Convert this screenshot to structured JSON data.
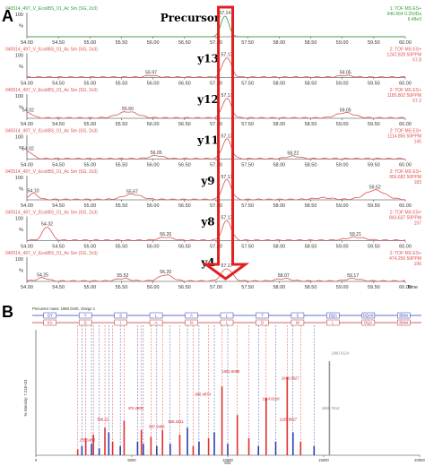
{
  "panel_labels": {
    "a": "A",
    "b": "B"
  },
  "chart_data": [
    {
      "type": "line",
      "panel": "A",
      "xlim": [
        54.0,
        60.0
      ],
      "x_ticks": [
        "54.00",
        "54.50",
        "55.00",
        "55.50",
        "56.00",
        "56.50",
        "57.00",
        "57.50",
        "58.00",
        "58.50",
        "59.00",
        "59.50",
        "60.00"
      ],
      "x_axis_label": "Time",
      "series": [
        {
          "name": "Precursor",
          "header": "040514_497_V_EcoliBS_01_Ac Sm (SG, 2x3)",
          "color": "#3a9a3a",
          "right_info": [
            "1: TOF MS ES+",
            "946.664 0.250Da",
            "6.48e3"
          ],
          "peaks": [
            {
              "x": 57.14,
              "h": 1.0,
              "w": 0.09
            }
          ],
          "peak_labels": [
            {
              "x": 57.14,
              "text": "57.14"
            }
          ]
        },
        {
          "name": "y13",
          "header": "040514_497_V_EcoliBS_01_Ac Sm (SG, 2x3)",
          "color": "#e05050",
          "right_info": [
            "2: TOF MS ES+",
            "1242.828 50PPM",
            "57.8"
          ],
          "peaks": [
            {
              "x": 57.17,
              "h": 0.95,
              "w": 0.1
            },
            {
              "x": 55.97,
              "h": 0.08,
              "w": 0.12
            },
            {
              "x": 59.05,
              "h": 0.08,
              "w": 0.15
            }
          ],
          "peak_labels": [
            {
              "x": 57.17,
              "text": "57.17"
            },
            {
              "x": 55.97,
              "text": "55.97"
            },
            {
              "x": 59.05,
              "text": "59.05"
            }
          ]
        },
        {
          "name": "y12",
          "header": "040514_497_V_EcoliBS_01_Ac Sm (SG, 2x3)",
          "color": "#e05050",
          "right_info": [
            "2: TOF MS ES+",
            "1185.802 50PPM",
            "57.2"
          ],
          "peaks": [
            {
              "x": 57.17,
              "h": 0.95,
              "w": 0.1
            },
            {
              "x": 54.02,
              "h": 0.25,
              "w": 0.1
            },
            {
              "x": 55.6,
              "h": 0.3,
              "w": 0.22
            },
            {
              "x": 59.05,
              "h": 0.25,
              "w": 0.2
            }
          ],
          "peak_labels": [
            {
              "x": 57.17,
              "text": "57.17"
            },
            {
              "x": 54.02,
              "text": "54.02"
            },
            {
              "x": 55.6,
              "text": "55.60"
            },
            {
              "x": 59.05,
              "text": "59.05"
            }
          ]
        },
        {
          "name": "y11",
          "header": "040514_497_V_EcoliBS_01_Ac Sm (SG, 2x3)",
          "color": "#e05050",
          "right_info": [
            "2: TOF MS ES+",
            "1114.855 50PPM",
            "145"
          ],
          "peaks": [
            {
              "x": 57.17,
              "h": 0.95,
              "w": 0.1
            },
            {
              "x": 54.02,
              "h": 0.35,
              "w": 0.1
            },
            {
              "x": 56.05,
              "h": 0.15,
              "w": 0.15
            },
            {
              "x": 58.22,
              "h": 0.12,
              "w": 0.15
            }
          ],
          "peak_labels": [
            {
              "x": 57.17,
              "text": "57.17"
            },
            {
              "x": 54.02,
              "text": "54.02"
            },
            {
              "x": 56.05,
              "text": "56.05"
            },
            {
              "x": 58.22,
              "text": "58.22"
            }
          ]
        },
        {
          "name": "y9",
          "header": "040514_497_V_EcoliBS_01_Ac Sm (SG, 2x3)",
          "color": "#e05050",
          "right_info": [
            "2: TOF MS ES+",
            "956.682 50PPM",
            "183"
          ],
          "peaks": [
            {
              "x": 57.17,
              "h": 0.95,
              "w": 0.1
            },
            {
              "x": 54.1,
              "h": 0.28,
              "w": 0.1
            },
            {
              "x": 55.67,
              "h": 0.25,
              "w": 0.2
            },
            {
              "x": 58.7,
              "h": 0.08,
              "w": 0.2
            },
            {
              "x": 59.52,
              "h": 0.45,
              "w": 0.22
            }
          ],
          "peak_labels": [
            {
              "x": 57.17,
              "text": "57.17"
            },
            {
              "x": 54.1,
              "text": "54.10"
            },
            {
              "x": 55.67,
              "text": "55.67"
            },
            {
              "x": 59.52,
              "text": "59.52"
            }
          ]
        },
        {
          "name": "y8",
          "header": "040514_497_V_EcoliBS_01_Ac Sm (SG, 2x3)",
          "color": "#e05050",
          "right_info": [
            "2: TOF MS ES+",
            "843.637 50PPM",
            "197"
          ],
          "peaks": [
            {
              "x": 57.17,
              "h": 0.95,
              "w": 0.1
            },
            {
              "x": 54.32,
              "h": 0.65,
              "w": 0.1
            },
            {
              "x": 56.2,
              "h": 0.15,
              "w": 0.15
            },
            {
              "x": 59.21,
              "h": 0.15,
              "w": 0.2
            }
          ],
          "peak_labels": [
            {
              "x": 57.17,
              "text": "57.17"
            },
            {
              "x": 54.32,
              "text": "54.32"
            },
            {
              "x": 56.2,
              "text": "56.20"
            },
            {
              "x": 59.21,
              "text": "59.21"
            }
          ]
        },
        {
          "name": "y4",
          "header": "040514_497_V_EcoliBS_01_Ac Sm (SG, 2x3)",
          "color": "#e05050",
          "right_info": [
            "2: TOF MS ES+",
            "474.256 50PPM",
            "196"
          ],
          "peaks": [
            {
              "x": 57.17,
              "h": 0.6,
              "w": 0.12
            },
            {
              "x": 54.25,
              "h": 0.15,
              "w": 0.12
            },
            {
              "x": 55.52,
              "h": 0.12,
              "w": 0.15
            },
            {
              "x": 56.2,
              "h": 0.3,
              "w": 0.15
            },
            {
              "x": 58.07,
              "h": 0.12,
              "w": 0.15
            },
            {
              "x": 59.17,
              "h": 0.12,
              "w": 0.15
            }
          ],
          "peak_labels": [
            {
              "x": 57.17,
              "text": "57.17"
            },
            {
              "x": 54.25,
              "text": "54.25"
            },
            {
              "x": 55.52,
              "text": "55.52"
            },
            {
              "x": 56.2,
              "text": "56.20"
            },
            {
              "x": 58.07,
              "text": "58.07"
            },
            {
              "x": 59.17,
              "text": "59.17"
            }
          ]
        }
      ],
      "annotation": {
        "type": "arrow",
        "color": "#e02020",
        "x": 57.15
      }
    },
    {
      "type": "bar",
      "panel": "B",
      "title": "Precursor mass: 1880.0100, charge 1",
      "xlim": [
        0,
        20000
      ],
      "x_ticks": [
        "0",
        "5000",
        "10000",
        "15000",
        "20000"
      ],
      "xlabel": "M/Z",
      "ylabel": "% Intensity: 7.21E+03",
      "sequence_top": [
        "GY",
        "Y",
        "S",
        "L",
        "A",
        "L",
        "T",
        "S",
        "DQA",
        "DQAK",
        "BMet"
      ],
      "sequence_bottom": [
        "KA",
        "G",
        "I",
        "A",
        "N",
        "L",
        "D",
        "W",
        "L",
        "DQA",
        "BMet"
      ],
      "x": [
        2180,
        2400,
        2600,
        2900,
        3000,
        3300,
        3600,
        3800,
        4000,
        4400,
        4600,
        5300,
        5500,
        5600,
        6000,
        6300,
        6600,
        7000,
        7500,
        7900,
        8200,
        8500,
        9000,
        9300,
        9700,
        10000,
        10500,
        11100,
        11600,
        12000,
        12500,
        13100,
        13400,
        13800,
        14500,
        15300
      ],
      "values": [
        5,
        8,
        15,
        10,
        18,
        6,
        24,
        20,
        12,
        8,
        30,
        12,
        22,
        10,
        16,
        8,
        22,
        10,
        18,
        24,
        8,
        12,
        15,
        20,
        60,
        10,
        35,
        15,
        8,
        50,
        12,
        68,
        20,
        12,
        8,
        82
      ],
      "colors": [
        "red",
        "blue",
        "red",
        "blue",
        "red",
        "blue",
        "red",
        "blue",
        "red",
        "blue",
        "red",
        "blue",
        "red",
        "blue",
        "red",
        "blue",
        "red",
        "blue",
        "red",
        "blue",
        "red",
        "blue",
        "red",
        "blue",
        "red",
        "blue",
        "red",
        "red",
        "blue",
        "red",
        "blue",
        "red",
        "blue",
        "red",
        "blue",
        "gray"
      ],
      "labels": [
        {
          "x": 2180,
          "y": 12,
          "text": "278.1483",
          "color": "red"
        },
        {
          "x": 3100,
          "y": 30,
          "text": "556.21",
          "color": "red"
        },
        {
          "x": 4700,
          "y": 40,
          "text": "476.2800",
          "color": "red"
        },
        {
          "x": 5800,
          "y": 24,
          "text": "587.3465",
          "color": "red"
        },
        {
          "x": 6800,
          "y": 28,
          "text": "828.3311",
          "color": "red"
        },
        {
          "x": 8200,
          "y": 52,
          "text": "906.4874",
          "color": "red"
        },
        {
          "x": 9600,
          "y": 72,
          "text": "1061.6088",
          "color": "red"
        },
        {
          "x": 12700,
          "y": 66,
          "text": "1040.0627",
          "color": "red"
        },
        {
          "x": 11700,
          "y": 48,
          "text": "1114.8218",
          "color": "red"
        },
        {
          "x": 12600,
          "y": 30,
          "text": "1165.8627",
          "color": "red"
        },
        {
          "x": 15300,
          "y": 88,
          "text": "1880.0124",
          "color": "gray"
        },
        {
          "x": 14800,
          "y": 40,
          "text": "1880.7614",
          "color": "gray"
        }
      ]
    }
  ]
}
